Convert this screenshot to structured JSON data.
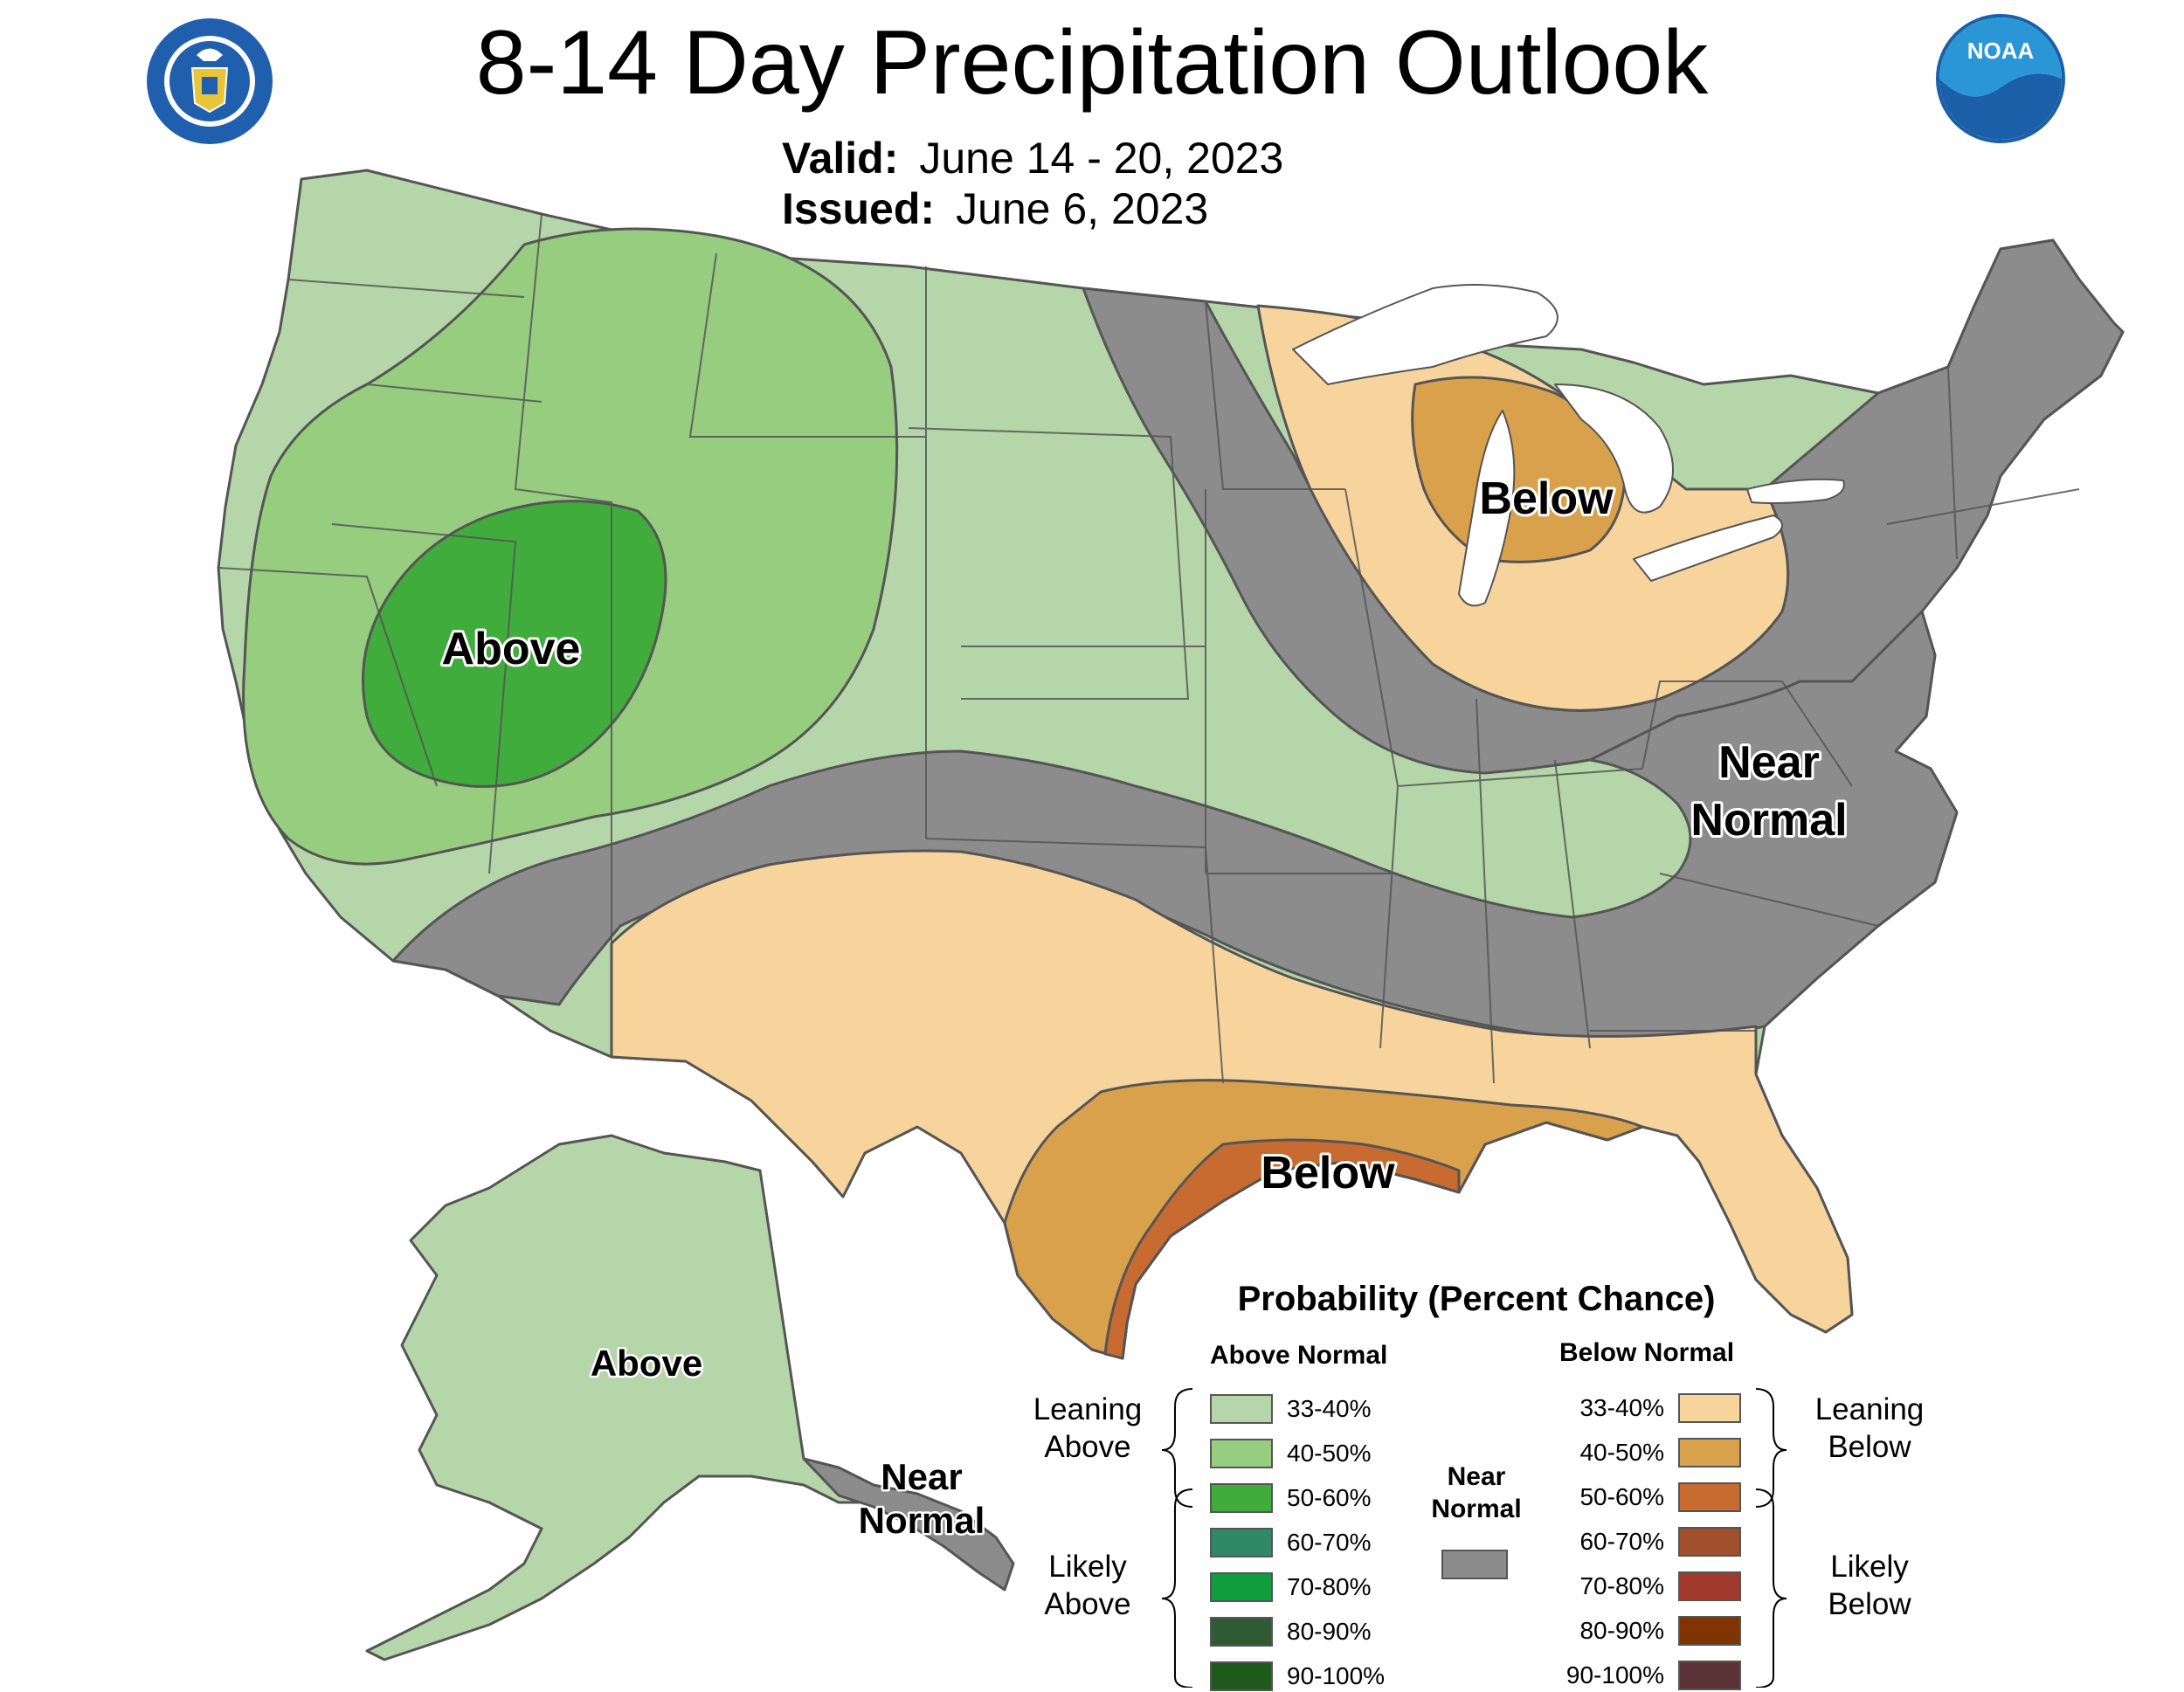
{
  "title": "8-14 Day Precipitation Outlook",
  "valid_label": "Valid:",
  "valid_value": "June 14 - 20, 2023",
  "issued_label": "Issued:",
  "issued_value": "June 6, 2023",
  "logos": {
    "commerce_seal_text": "DEPARTMENT OF COMMERCE · UNITED STATES OF AMERICA",
    "noaa": "NOAA"
  },
  "map_labels": {
    "west_above": "Above",
    "great_lakes_below": "Below",
    "east_near_normal_line1": "Near",
    "east_near_normal_line2": "Normal",
    "gulf_below": "Below",
    "alaska_above": "Above",
    "alaska_near_normal_line1": "Near",
    "alaska_near_normal_line2": "Normal"
  },
  "colors": {
    "above_33_40": "#b5d6a8",
    "above_40_50": "#96cd7e",
    "above_50_60": "#3fac3c",
    "above_60_70": "#2f8968",
    "above_70_80": "#0f9d3e",
    "above_80_90": "#2f5a34",
    "above_90_100": "#1e5a1a",
    "near_normal": "#8c8c8c",
    "below_33_40": "#f8d49d",
    "below_40_50": "#d9a14c",
    "below_50_60": "#c86b31",
    "below_60_70": "#a0502b",
    "below_70_80": "#a13a2c",
    "below_80_90": "#7f3300",
    "below_90_100": "#5b3235",
    "boundaries": "#555555",
    "great_lakes": "#ffffff"
  },
  "legend": {
    "title": "Probability (Percent Chance)",
    "above_heading": "Above Normal",
    "below_heading": "Below Normal",
    "near_heading_line1": "Near",
    "near_heading_line2": "Normal",
    "leaning_above_line1": "Leaning",
    "leaning_above_line2": "Above",
    "likely_above_line1": "Likely",
    "likely_above_line2": "Above",
    "leaning_below_line1": "Leaning",
    "leaning_below_line2": "Below",
    "likely_below_line1": "Likely",
    "likely_below_line2": "Below",
    "above_rows": [
      {
        "range": "33-40%",
        "color": "#b5d6a8"
      },
      {
        "range": "40-50%",
        "color": "#96cd7e"
      },
      {
        "range": "50-60%",
        "color": "#3fac3c"
      },
      {
        "range": "60-70%",
        "color": "#2f8968"
      },
      {
        "range": "70-80%",
        "color": "#0f9d3e"
      },
      {
        "range": "80-90%",
        "color": "#2f5a34"
      },
      {
        "range": "90-100%",
        "color": "#1e5a1a"
      }
    ],
    "below_rows": [
      {
        "range": "33-40%",
        "color": "#f8d49d"
      },
      {
        "range": "40-50%",
        "color": "#d9a14c"
      },
      {
        "range": "50-60%",
        "color": "#c86b31"
      },
      {
        "range": "60-70%",
        "color": "#a0502b"
      },
      {
        "range": "70-80%",
        "color": "#a13a2c"
      },
      {
        "range": "80-90%",
        "color": "#7f3300"
      },
      {
        "range": "90-100%",
        "color": "#5b3235"
      }
    ]
  }
}
